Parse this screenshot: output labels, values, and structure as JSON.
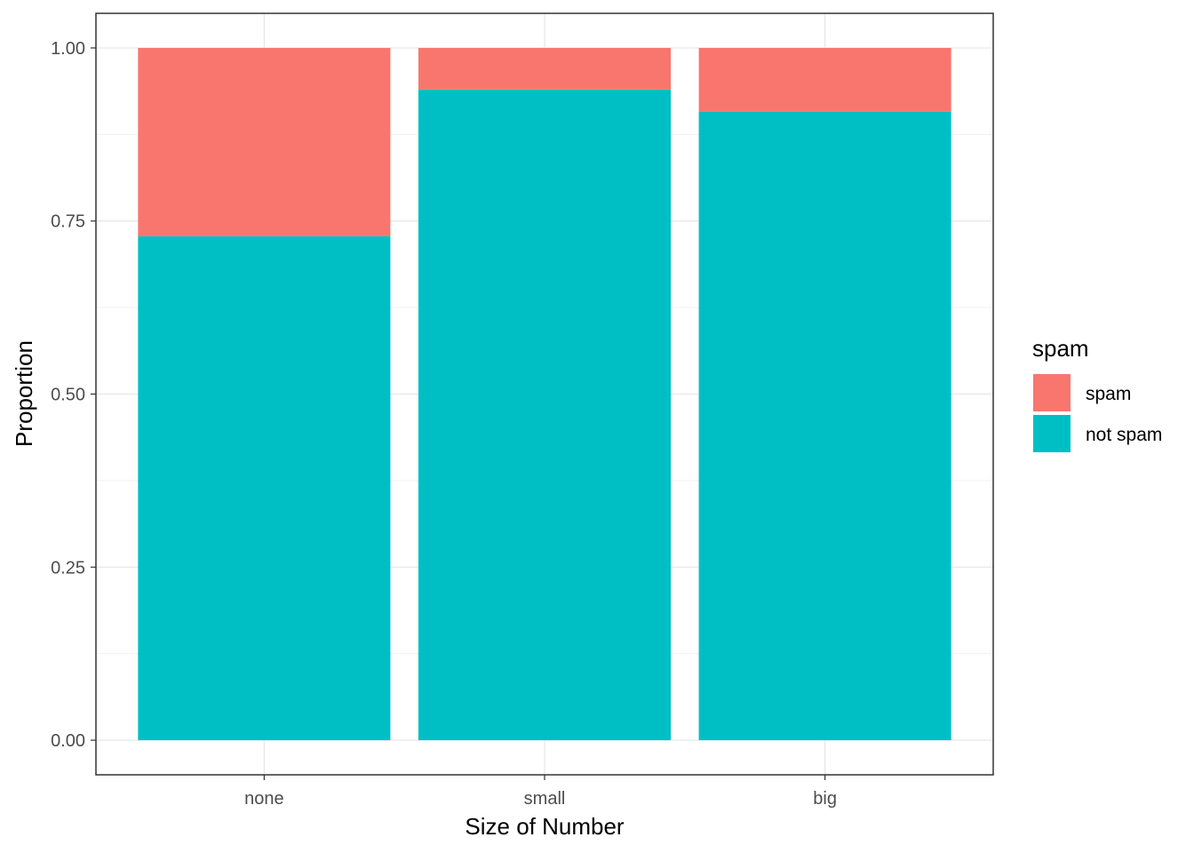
{
  "chart_data": {
    "type": "bar",
    "stacked": true,
    "categories": [
      "none",
      "small",
      "big"
    ],
    "series": [
      {
        "name": "not spam",
        "values": [
          0.728,
          0.94,
          0.908
        ],
        "color": "#00BFC4"
      },
      {
        "name": "spam",
        "values": [
          0.272,
          0.06,
          0.092
        ],
        "color": "#F8766D"
      }
    ],
    "xlabel": "Size of Number",
    "ylabel": "Proportion",
    "ylim": [
      -0.05,
      1.05
    ],
    "yticks": [
      "0.00",
      "0.25",
      "0.50",
      "0.75",
      "1.00"
    ],
    "grid": true,
    "legend": {
      "title": "spam",
      "placement": "right",
      "entries": [
        {
          "label": "spam",
          "color": "#F8766D"
        },
        {
          "label": "not spam",
          "color": "#00BFC4"
        }
      ]
    }
  }
}
